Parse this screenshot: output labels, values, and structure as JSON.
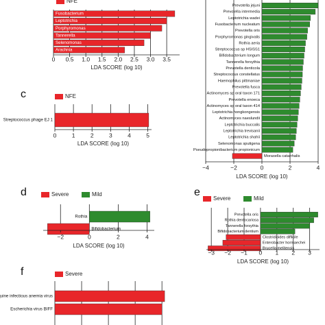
{
  "chart_data": [
    {
      "type": "bar",
      "panel": "",
      "orientation": "horizontal",
      "legend": [
        {
          "name": "NFE",
          "color": "#e8262a"
        }
      ],
      "legend_placement": "top",
      "categories": [
        "Fusobacterium",
        "Leptotrichia",
        "Porphyromonas",
        "Tannerella",
        "Selenomonas",
        "Arachnia"
      ],
      "values": [
        3.75,
        3.5,
        3.35,
        3.0,
        2.8,
        2.2
      ],
      "colors": [
        "#e8262a",
        "#e8262a",
        "#e8262a",
        "#e8262a",
        "#e8262a",
        "#e8262a"
      ],
      "label_side": "inside-left",
      "xlim": [
        0,
        3.9
      ],
      "ticks": [
        "0",
        "0.5",
        "1.0",
        "1.5",
        "2.0",
        "2.5",
        "3.0",
        "3.5"
      ],
      "tick_values": [
        0,
        0.5,
        1.0,
        1.5,
        2.0,
        2.5,
        3.0,
        3.5
      ],
      "xlabel": "LDA SCORE (log 10)",
      "grid": true
    },
    {
      "type": "bar",
      "panel": "",
      "orientation": "horizontal",
      "legend": [],
      "categories": [
        "Prevotella jejuni",
        "Prevotella intermedia",
        "Leptotrichia wadei",
        "Fusobacterium nucleatum",
        "Prevotella oris",
        "Porphyromonas gingivalis",
        "Rothia aeria",
        "Streptococcus sp HSISS1",
        "Bifidobacterium longum",
        "Tannerella forsythia",
        "Prevotella denticola",
        "Streptococcus constellatus",
        "Haemophilus pittmaniae",
        "Prevotella fusca",
        "Actinomyces sp oral taxon 171",
        "Prevotella enoeca",
        "Actinomyces sp oral taxon 414",
        "Leptotrichia hongkongensis",
        "Actinomyces naeslundii",
        "Leptotrichia buccalis",
        "Leptotrichia trevisanii",
        "Leptotrichia shahii",
        "Selenomonas sputigena",
        "Pseudopropionibacterium propionicum",
        "Moraxella catarrhalis"
      ],
      "values": [
        4.0,
        3.8,
        3.45,
        3.4,
        3.25,
        3.2,
        3.1,
        3.05,
        3.0,
        2.95,
        2.9,
        2.88,
        2.85,
        2.8,
        2.75,
        2.7,
        2.65,
        2.6,
        2.55,
        2.5,
        2.45,
        2.4,
        2.3,
        2.2,
        -2.1
      ],
      "colors": [
        "#2e8b2e",
        "#2e8b2e",
        "#2e8b2e",
        "#2e8b2e",
        "#2e8b2e",
        "#2e8b2e",
        "#2e8b2e",
        "#2e8b2e",
        "#2e8b2e",
        "#2e8b2e",
        "#2e8b2e",
        "#2e8b2e",
        "#2e8b2e",
        "#2e8b2e",
        "#2e8b2e",
        "#2e8b2e",
        "#2e8b2e",
        "#2e8b2e",
        "#2e8b2e",
        "#2e8b2e",
        "#2e8b2e",
        "#2e8b2e",
        "#2e8b2e",
        "#2e8b2e",
        "#e8262a"
      ],
      "label_side": "opposite-of-bar",
      "xlim": [
        -4,
        4
      ],
      "ticks": [
        "−4",
        "−2",
        "0",
        "2",
        "4"
      ],
      "tick_values": [
        -4,
        -2,
        0,
        2,
        4
      ],
      "xlabel": "LDA SCORE (log 10)",
      "grid": true
    },
    {
      "type": "bar",
      "panel": "c",
      "orientation": "horizontal",
      "legend": [
        {
          "name": "NFE",
          "color": "#e8262a"
        }
      ],
      "legend_placement": "top",
      "categories": [
        "Streptococcus phage EJ 1"
      ],
      "values": [
        5.05
      ],
      "colors": [
        "#e8262a"
      ],
      "label_side": "outside-left",
      "xlim": [
        0,
        5.2
      ],
      "ticks": [
        "0",
        "1",
        "2",
        "3",
        "4",
        "5"
      ],
      "tick_values": [
        0,
        1,
        2,
        3,
        4,
        5
      ],
      "xlabel": "LDA SCORE (log 10)",
      "grid": true
    },
    {
      "type": "bar",
      "panel": "d",
      "orientation": "horizontal",
      "legend": [
        {
          "name": "Severe",
          "color": "#e8262a"
        },
        {
          "name": "Mild",
          "color": "#2e8b2e"
        }
      ],
      "legend_placement": "top",
      "categories": [
        "Rothia",
        "Bifidobacterium"
      ],
      "values": [
        4.2,
        -2.9
      ],
      "colors": [
        "#2e8b2e",
        "#e8262a"
      ],
      "label_side": "opposite-of-bar",
      "xlim": [
        -3.2,
        4.5
      ],
      "ticks": [
        "−2",
        "0",
        "2",
        "4"
      ],
      "tick_values": [
        -2,
        0,
        2,
        4
      ],
      "xlabel": "LDA SCORE (log 10)",
      "grid": true
    },
    {
      "type": "bar",
      "panel": "e",
      "orientation": "horizontal",
      "legend": [
        {
          "name": "Severe",
          "color": "#e8262a"
        },
        {
          "name": "Mild",
          "color": "#2e8b2e"
        }
      ],
      "legend_placement": "top",
      "categories": [
        "Prevotella oris",
        "Rothia dentocariosa",
        "Tannerella forsythia",
        "Bifidobacterium dentium",
        "Clostridioides difficile",
        "Enterobacter hormaechei",
        "Brucella melitensis"
      ],
      "values": [
        3.5,
        3.25,
        3.0,
        2.1,
        -2.1,
        -2.3,
        -3.2
      ],
      "colors": [
        "#2e8b2e",
        "#2e8b2e",
        "#2e8b2e",
        "#2e8b2e",
        "#e8262a",
        "#e8262a",
        "#e8262a"
      ],
      "label_side": "opposite-of-bar",
      "xlim": [
        -3.3,
        3.6
      ],
      "ticks": [
        "−3",
        "−2",
        "−1",
        "0",
        "1",
        "2",
        "3"
      ],
      "tick_values": [
        -3,
        -2,
        -1,
        0,
        1,
        2,
        3
      ],
      "xlabel": "LDA SCORE (log 10)",
      "grid": true
    },
    {
      "type": "bar",
      "panel": "f",
      "orientation": "horizontal",
      "legend": [
        {
          "name": "Severe",
          "color": "#e8262a"
        }
      ],
      "legend_placement": "top",
      "categories": [
        "Equine infectious anemia virus",
        "Escherichia virus BIFF"
      ],
      "values": [
        4.1,
        4.0
      ],
      "colors": [
        "#e8262a",
        "#e8262a"
      ],
      "label_side": "outside-left",
      "xlim": [
        0,
        4.2
      ],
      "ticks": [],
      "tick_values": [
        0,
        1,
        2,
        3,
        4
      ],
      "xlabel": "",
      "grid": true
    }
  ]
}
